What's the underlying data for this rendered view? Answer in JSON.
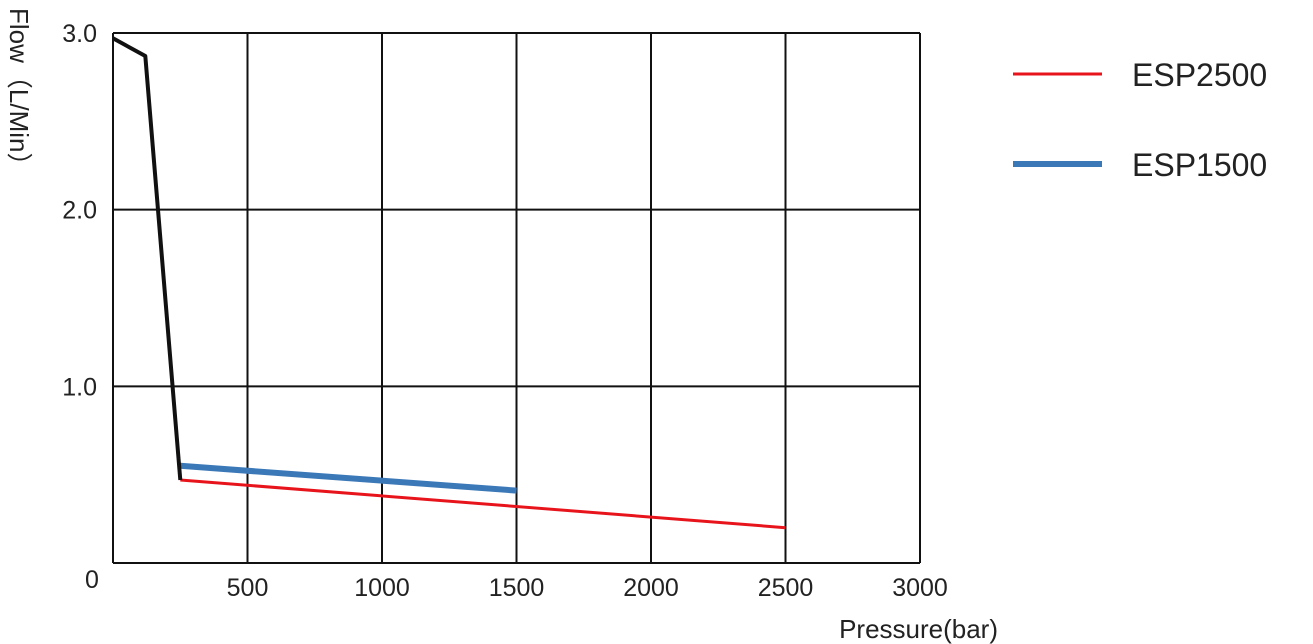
{
  "chart_data": {
    "type": "line",
    "xlabel": "Pressure(bar)",
    "ylabel": "Flow（L/Min）",
    "xlim": [
      0,
      3000
    ],
    "ylim": [
      0,
      3.0
    ],
    "x_ticks": [
      "500",
      "1000",
      "1500",
      "2000",
      "2500",
      "3000"
    ],
    "y_ticks": [
      "3.0",
      "2.0",
      "1.0"
    ],
    "origin_label": "0",
    "grid": true,
    "legend_position": "right",
    "series": [
      {
        "name": "ESP2500",
        "color": "#e8141c",
        "points": [
          [
            250,
            0.47
          ],
          [
            2500,
            0.2
          ]
        ]
      },
      {
        "name": "ESP1500",
        "color": "#3b78b8",
        "points": [
          [
            250,
            0.55
          ],
          [
            1500,
            0.41
          ]
        ]
      },
      {
        "color": "#111111",
        "points": [
          [
            0,
            2.97
          ],
          [
            120,
            2.87
          ],
          [
            250,
            0.47
          ]
        ]
      }
    ]
  }
}
